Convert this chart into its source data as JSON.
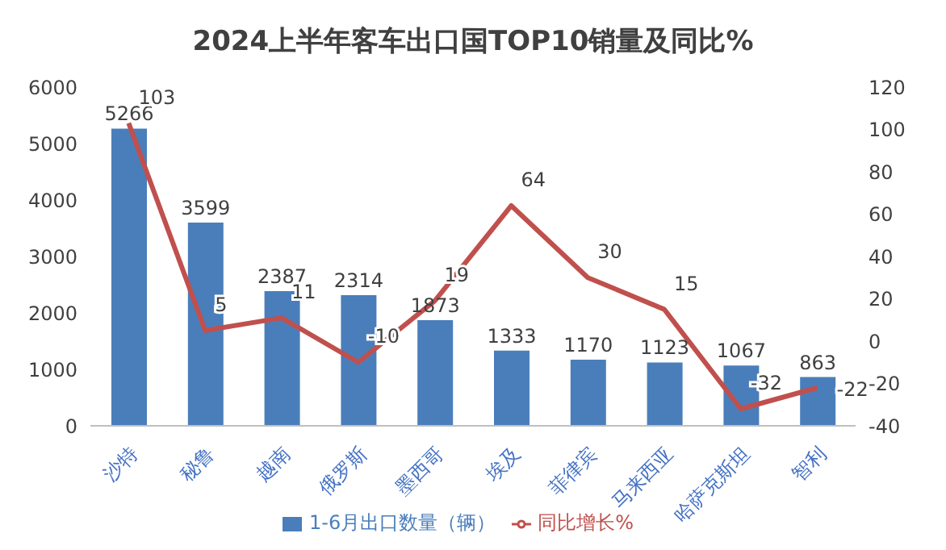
{
  "chart_data": {
    "type": "bar",
    "title": "2024上半年客车出口国TOP10销量及同比%",
    "categories": [
      "沙特",
      "秘鲁",
      "越南",
      "俄罗斯",
      "墨西哥",
      "埃及",
      "菲律宾",
      "马来西亚",
      "哈萨克斯坦",
      "智利"
    ],
    "series": [
      {
        "name": "1-6月出口数量（辆）",
        "color": "#4a7ebb",
        "values": [
          5266,
          3599,
          2387,
          2314,
          1873,
          1333,
          1170,
          1123,
          1067,
          863
        ]
      },
      {
        "name": "同比增长%",
        "type": "line",
        "axis": "y2",
        "color": "#c0504d",
        "values": [
          103,
          5,
          11,
          -10,
          19,
          64,
          30,
          15,
          -32,
          -22
        ]
      }
    ],
    "ylim": [
      0,
      6000
    ],
    "yticks": [
      0,
      1000,
      2000,
      3000,
      4000,
      5000,
      6000
    ],
    "y2lim": [
      -40,
      120
    ],
    "y2ticks": [
      -40,
      -20,
      0,
      20,
      40,
      60,
      80,
      100,
      120
    ],
    "data_labels": true,
    "grid": false,
    "legend": "bottom",
    "marker": "none",
    "line_style": "solid"
  }
}
